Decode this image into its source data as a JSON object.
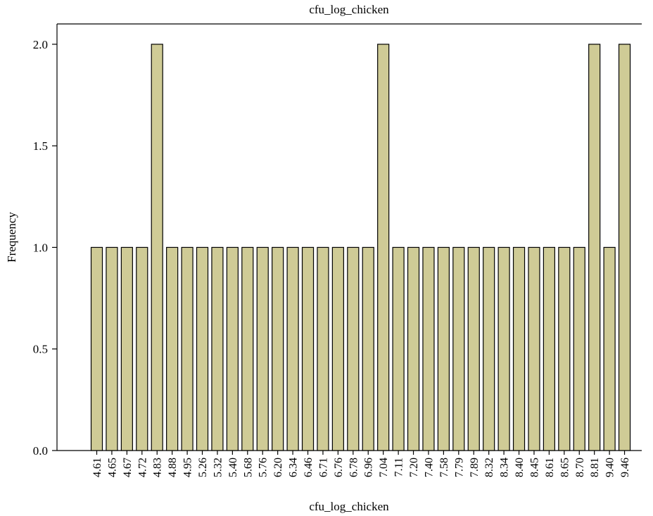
{
  "chart_data": {
    "type": "bar",
    "title": "cfu_log_chicken",
    "xlabel": "cfu_log_chicken",
    "ylabel": "Frequency",
    "categories": [
      "4.61",
      "4.65",
      "4.67",
      "4.72",
      "4.83",
      "4.88",
      "4.95",
      "5.26",
      "5.32",
      "5.40",
      "5.68",
      "5.76",
      "6.20",
      "6.34",
      "6.46",
      "6.71",
      "6.76",
      "6.78",
      "6.96",
      "7.04",
      "7.11",
      "7.20",
      "7.40",
      "7.58",
      "7.79",
      "7.89",
      "8.32",
      "8.34",
      "8.40",
      "8.45",
      "8.61",
      "8.65",
      "8.70",
      "8.81",
      "9.40",
      "9.46"
    ],
    "values": [
      1,
      1,
      1,
      1,
      2,
      1,
      1,
      1,
      1,
      1,
      1,
      1,
      1,
      1,
      1,
      1,
      1,
      1,
      1,
      2,
      1,
      1,
      1,
      1,
      1,
      1,
      1,
      1,
      1,
      1,
      1,
      1,
      1,
      2,
      1,
      2
    ],
    "ylim": [
      0,
      2.1
    ],
    "yticks": [
      "0.0",
      "0.5",
      "1.0",
      "1.5",
      "2.0"
    ],
    "grid": false,
    "bar_color": "#cfcb96",
    "bar_edge_color": "#000000"
  }
}
